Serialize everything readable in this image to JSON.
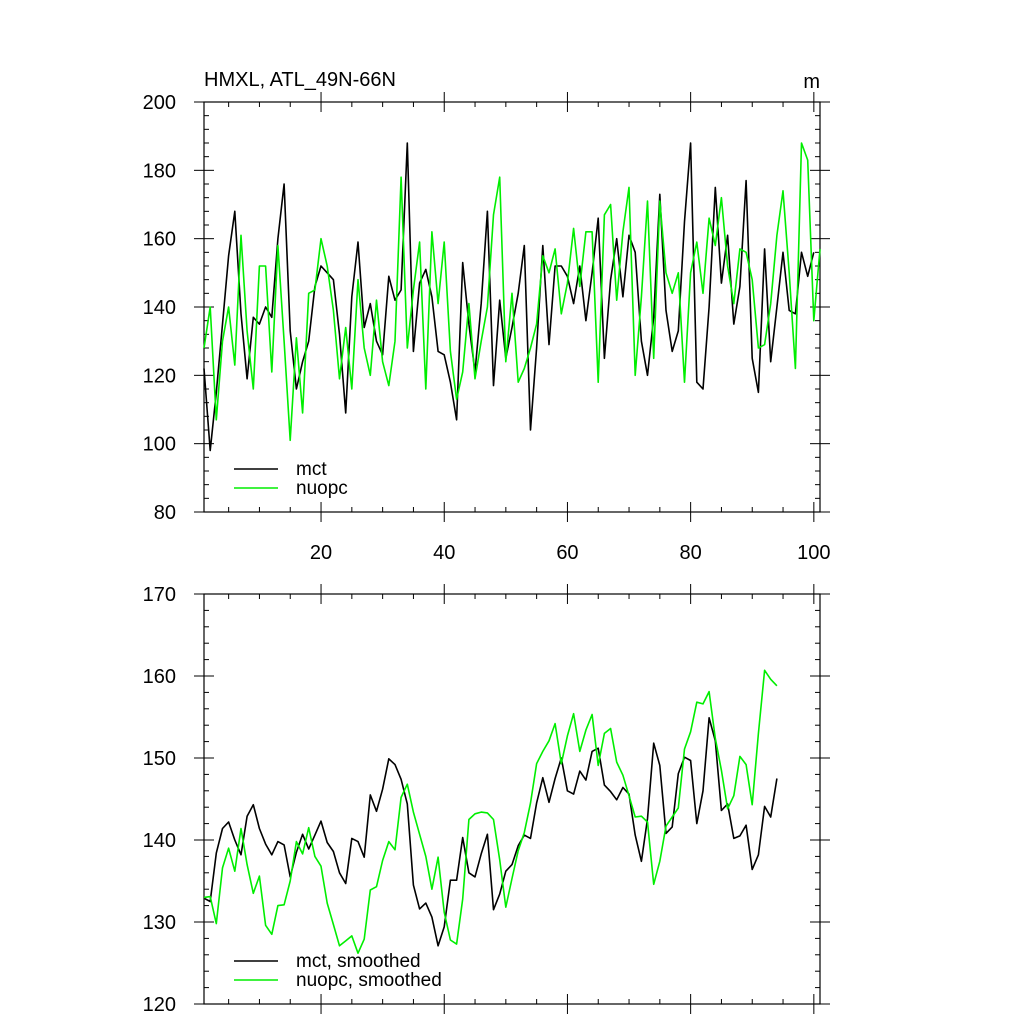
{
  "chart_data": [
    {
      "type": "line",
      "title": "HMXL, ATL_49N-66N",
      "units": "m",
      "xlim": [
        1,
        101
      ],
      "ylim": [
        80,
        200
      ],
      "x_ticks": [
        20,
        40,
        60,
        80,
        100
      ],
      "y_ticks": [
        80,
        100,
        120,
        140,
        160,
        180,
        200
      ],
      "legend": {
        "position": "bottom-left"
      },
      "series": [
        {
          "name": "mct",
          "color": "#000000",
          "values": [
            122,
            98,
            115,
            135,
            155,
            168,
            138,
            119,
            137,
            135,
            140,
            137,
            160,
            176,
            133,
            116,
            124,
            130,
            146,
            152,
            150,
            148,
            132,
            109,
            143,
            159,
            134,
            141,
            130,
            126,
            149,
            142,
            145,
            188,
            127,
            147,
            151,
            143,
            127,
            126,
            118,
            107,
            153,
            135,
            121,
            141,
            168,
            117,
            142,
            125,
            134,
            144,
            158,
            104,
            128,
            158,
            129,
            152,
            152,
            149,
            141,
            152,
            136,
            150,
            166,
            125,
            148,
            160,
            143,
            161,
            156,
            130,
            120,
            137,
            173,
            139,
            127,
            133,
            165,
            188,
            118,
            116,
            140,
            175,
            147,
            161,
            135,
            146,
            177,
            125,
            115,
            157,
            124,
            140,
            156,
            139,
            138,
            156,
            149,
            156
          ]
        },
        {
          "name": "nuopc",
          "color": "#00ee00",
          "values": [
            128,
            140,
            107,
            130,
            140,
            123,
            161,
            133,
            116,
            152,
            152,
            121,
            158,
            130,
            101,
            131,
            109,
            144,
            145,
            160,
            152,
            139,
            119,
            134,
            116,
            148,
            128,
            120,
            142,
            124,
            117,
            130,
            178,
            128,
            145,
            159,
            116,
            162,
            141,
            159,
            127,
            113,
            121,
            141,
            119,
            130,
            140,
            167,
            178,
            124,
            144,
            118,
            122,
            128,
            135,
            155,
            150,
            157,
            138,
            147,
            163,
            146,
            162,
            162,
            118,
            167,
            170,
            142,
            162,
            175,
            120,
            143,
            171,
            125,
            171,
            150,
            144,
            150,
            118,
            150,
            159,
            144,
            166,
            158,
            172,
            152,
            141,
            157,
            156,
            148,
            128,
            129,
            141,
            161,
            174,
            150,
            122,
            188,
            183,
            136,
            157
          ]
        }
      ]
    },
    {
      "type": "line",
      "title": "",
      "xlim": [
        1,
        101
      ],
      "ylim": [
        120,
        170
      ],
      "x_ticks": [
        20,
        40,
        60,
        80,
        100
      ],
      "y_ticks": [
        120,
        130,
        140,
        150,
        160,
        170
      ],
      "legend": {
        "position": "bottom-left"
      },
      "series": [
        {
          "name": "mct, smoothed",
          "color": "#000000",
          "values": [
            132.9,
            132.5,
            138.4,
            141.4,
            142.2,
            140.0,
            138.2,
            142.9,
            144.3,
            141.4,
            139.5,
            138.2,
            139.8,
            139.4,
            135.5,
            138.5,
            140.7,
            138.9,
            140.6,
            142.3,
            139.7,
            138.6,
            136.0,
            134.7,
            140.2,
            139.8,
            137.9,
            145.5,
            143.5,
            146.2,
            149.9,
            149.2,
            147.4,
            144.4,
            134.5,
            131.6,
            132.3,
            130.6,
            127.1,
            129.4,
            135.1,
            135.1,
            140.3,
            136.0,
            135.5,
            138.3,
            140.7,
            131.5,
            133.4,
            136.2,
            137.0,
            139.3,
            140.6,
            140.2,
            144.5,
            147.6,
            144.6,
            147.5,
            150.0,
            146.0,
            145.6,
            148.4,
            147.3,
            150.8,
            151.2,
            146.7,
            145.9,
            144.9,
            146.4,
            145.6,
            140.6,
            137.4,
            142.6,
            151.8,
            149.1,
            140.8,
            141.6,
            148.1,
            150.1,
            149.7,
            142.0,
            146.0,
            154.9,
            152.1,
            143.6,
            144.4,
            140.2,
            140.5,
            141.8,
            136.4,
            138.2,
            144.1,
            142.8,
            147.5
          ]
        },
        {
          "name": "nuopc, smoothed",
          "color": "#00ee00",
          "values": [
            133.0,
            133.1,
            129.8,
            136.6,
            139.0,
            136.2,
            141.4,
            137.0,
            133.5,
            135.6,
            129.6,
            128.5,
            132.0,
            132.1,
            135.0,
            139.8,
            138.3,
            141.5,
            138.0,
            136.8,
            132.3,
            129.7,
            127.1,
            127.7,
            128.3,
            126.2,
            127.9,
            133.9,
            134.3,
            137.5,
            139.8,
            138.8,
            145.2,
            146.8,
            143.4,
            140.7,
            138.0,
            134.0,
            137.9,
            131.2,
            127.8,
            127.3,
            132.8,
            142.5,
            143.2,
            143.4,
            143.3,
            142.5,
            137.6,
            131.8,
            135.3,
            138.7,
            140.9,
            144.5,
            149.3,
            150.8,
            152.1,
            154.2,
            149.3,
            152.7,
            155.4,
            150.8,
            153.4,
            155.3,
            149.1,
            153.0,
            153.6,
            149.5,
            147.9,
            145.4,
            142.8,
            142.9,
            142.2,
            134.6,
            137.4,
            141.7,
            142.8,
            143.9,
            151.1,
            153.2,
            156.8,
            156.6,
            158.1,
            152.4,
            148.5,
            143.8,
            145.4,
            150.2,
            149.2,
            144.3,
            153.0,
            160.7,
            159.6,
            158.8
          ]
        }
      ]
    }
  ]
}
